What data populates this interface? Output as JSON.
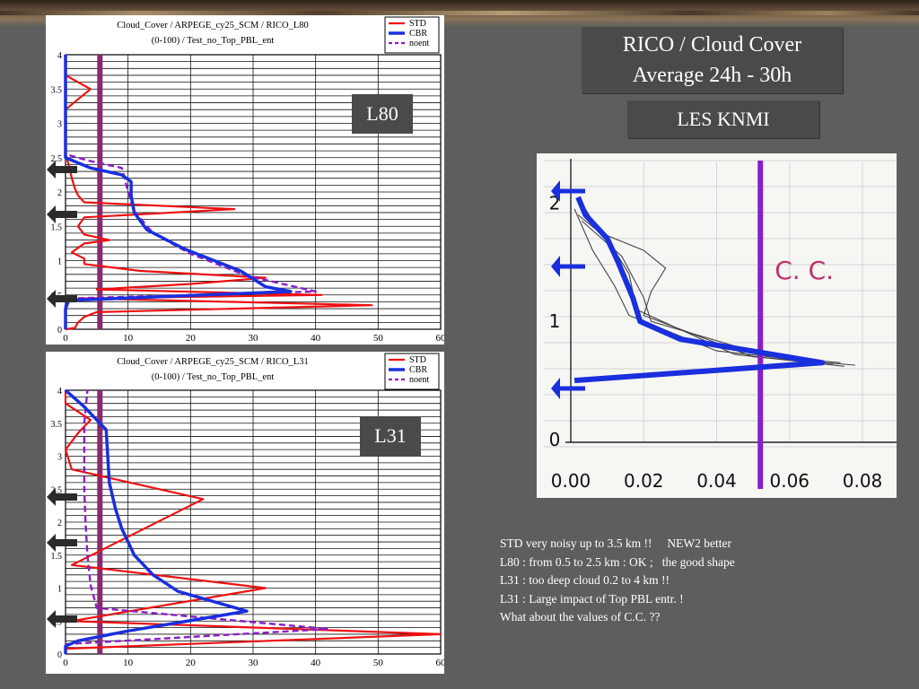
{
  "header": {
    "title_line1": "RICO / Cloud Cover",
    "title_line2": "Average  24h - 30h",
    "les_label": "LES KNMI"
  },
  "colors": {
    "std": "#ee1111",
    "cbr": "#1a2fdd",
    "noent": "#8a1ec8",
    "marker": "#8a2a6e"
  },
  "charts": [
    {
      "id": "l80",
      "tag": "L80",
      "title_line1": "Cloud_Cover / ARPEGE_cy25_SCM / RICO_L80",
      "title_line2": "(0-100) / Test_no_Top_PBL_ent",
      "legend": [
        "STD",
        "CBR",
        "noent"
      ],
      "x_ticks": [
        "0",
        "10",
        "20",
        "30",
        "40",
        "50",
        "60"
      ],
      "y_ticks": [
        "0",
        "0.5",
        "1",
        "1.5",
        "2",
        "2.5",
        "3",
        "3.5",
        "4"
      ]
    },
    {
      "id": "l31",
      "tag": "L31",
      "title_line1": "Cloud_Cover / ARPEGE_cy25_SCM / RICO_L31",
      "title_line2": "(0-100) / Test_no_Top_PBL_ent",
      "legend": [
        "STD",
        "CBR",
        "noent"
      ],
      "x_ticks": [
        "0",
        "10",
        "20",
        "30",
        "40",
        "50",
        "60"
      ],
      "y_ticks": [
        "0",
        "0.5",
        "1",
        "1.5",
        "2",
        "2.5",
        "3",
        "3.5",
        "4"
      ]
    }
  ],
  "les_chart": {
    "annotation": "C. C.",
    "x_ticks": [
      "0.00",
      "0.02",
      "0.04",
      "0.06",
      "0.08"
    ],
    "y_ticks": [
      "0",
      "1",
      "2"
    ]
  },
  "notes": [
    "STD very noisy up to 3.5 km !!     NEW2 better",
    "L80 : from 0.5 to 2.5 km : OK ;   the good shape",
    "L31 : too deep cloud 0.2 to 4 km !!",
    "L31 : Large impact of Top PBL entr. !",
    "What about the values of C.C. ??"
  ],
  "chart_data": [
    {
      "type": "line",
      "title": "Cloud_Cover / ARPEGE_cy25_SCM / RICO_L80",
      "subtitle": "(0-100) / Test_no_Top_PBL_ent",
      "xlim": [
        0,
        60
      ],
      "ylim": [
        0,
        4
      ],
      "grid": true,
      "legend_position": "top-right",
      "marker_x": 5.5,
      "series": [
        {
          "name": "STD",
          "points": [
            [
              0,
              0
            ],
            [
              1.5,
              0.02
            ],
            [
              2,
              0.1
            ],
            [
              3,
              0.18
            ],
            [
              5,
              0.25
            ],
            [
              49,
              0.35
            ],
            [
              3,
              0.45
            ],
            [
              41,
              0.5
            ],
            [
              5,
              0.58
            ],
            [
              20,
              0.66
            ],
            [
              32,
              0.75
            ],
            [
              12,
              0.85
            ],
            [
              3,
              0.95
            ],
            [
              3,
              1.03
            ],
            [
              1,
              1.12
            ],
            [
              3,
              1.25
            ],
            [
              7,
              1.3
            ],
            [
              3,
              1.38
            ],
            [
              2,
              1.5
            ],
            [
              3,
              1.63
            ],
            [
              27,
              1.75
            ],
            [
              3,
              1.85
            ],
            [
              2,
              1.95
            ],
            [
              1.5,
              2.05
            ],
            [
              1,
              2.2
            ],
            [
              0.5,
              2.4
            ],
            [
              0,
              2.55
            ],
            [
              0,
              3.2
            ],
            [
              2,
              3.35
            ],
            [
              4,
              3.5
            ],
            [
              0,
              3.7
            ],
            [
              0,
              4
            ]
          ]
        },
        {
          "name": "CBR",
          "points": [
            [
              0,
              0
            ],
            [
              0,
              0.3
            ],
            [
              0.5,
              0.42
            ],
            [
              36,
              0.55
            ],
            [
              32,
              0.62
            ],
            [
              28,
              0.85
            ],
            [
              19,
              1.17
            ],
            [
              13,
              1.45
            ],
            [
              11,
              1.7
            ],
            [
              10.5,
              1.95
            ],
            [
              10.5,
              2.15
            ],
            [
              9,
              2.25
            ],
            [
              4,
              2.35
            ],
            [
              0,
              2.5
            ],
            [
              0,
              4
            ]
          ]
        },
        {
          "name": "noent",
          "points": [
            [
              0,
              0
            ],
            [
              0,
              0.35
            ],
            [
              1,
              0.45
            ],
            [
              40,
              0.55
            ],
            [
              29,
              0.78
            ],
            [
              20,
              1.1
            ],
            [
              14,
              1.4
            ],
            [
              11,
              1.72
            ],
            [
              10,
              2.0
            ],
            [
              9,
              2.35
            ],
            [
              4,
              2.45
            ],
            [
              0,
              2.55
            ],
            [
              0,
              4
            ]
          ]
        }
      ]
    },
    {
      "type": "line",
      "title": "Cloud_Cover / ARPEGE_cy25_SCM / RICO_L31",
      "subtitle": "(0-100) / Test_no_Top_PBL_ent",
      "xlim": [
        0,
        60
      ],
      "ylim": [
        0,
        4
      ],
      "grid": true,
      "legend_position": "top-right",
      "marker_x": 5.5,
      "series": [
        {
          "name": "STD",
          "points": [
            [
              0,
              0
            ],
            [
              0,
              0.08
            ],
            [
              60,
              0.3
            ],
            [
              1,
              0.5
            ],
            [
              32,
              1.0
            ],
            [
              1,
              1.35
            ],
            [
              22,
              2.35
            ],
            [
              1,
              2.8
            ],
            [
              0,
              3.1
            ],
            [
              2,
              3.35
            ],
            [
              4,
              3.55
            ],
            [
              0,
              3.8
            ],
            [
              0,
              4
            ]
          ]
        },
        {
          "name": "CBR",
          "points": [
            [
              0,
              0
            ],
            [
              0,
              0.12
            ],
            [
              2,
              0.2
            ],
            [
              10,
              0.35
            ],
            [
              29,
              0.65
            ],
            [
              18,
              0.95
            ],
            [
              14,
              1.2
            ],
            [
              11,
              1.5
            ],
            [
              9,
              1.9
            ],
            [
              8,
              2.2
            ],
            [
              7,
              2.6
            ],
            [
              6.5,
              3.4
            ],
            [
              3,
              3.75
            ],
            [
              0,
              4
            ]
          ]
        },
        {
          "name": "noent",
          "points": [
            [
              0,
              0
            ],
            [
              0,
              0.15
            ],
            [
              42,
              0.38
            ],
            [
              5,
              0.7
            ],
            [
              4,
              1.05
            ],
            [
              3.5,
              1.5
            ],
            [
              3.2,
              2.0
            ],
            [
              3,
              2.5
            ],
            [
              3,
              3.0
            ],
            [
              3,
              3.5
            ],
            [
              3.5,
              4
            ]
          ]
        }
      ]
    },
    {
      "type": "line",
      "title": "",
      "xlim": [
        0,
        0.08
      ],
      "ylim": [
        0,
        2.2
      ],
      "grid": true,
      "marker_x": 0.052,
      "annotation": "C. C.",
      "series": [
        {
          "name": "",
          "points": [
            [
              0.001,
              0.5
            ],
            [
              0.069,
              0.65
            ],
            [
              0.03,
              0.85
            ],
            [
              0.019,
              1.0
            ],
            [
              0.017,
              1.2
            ],
            [
              0.013,
              1.5
            ],
            [
              0.01,
              1.7
            ],
            [
              0.004,
              1.9
            ],
            [
              0.002,
              2.05
            ]
          ]
        }
      ]
    }
  ]
}
